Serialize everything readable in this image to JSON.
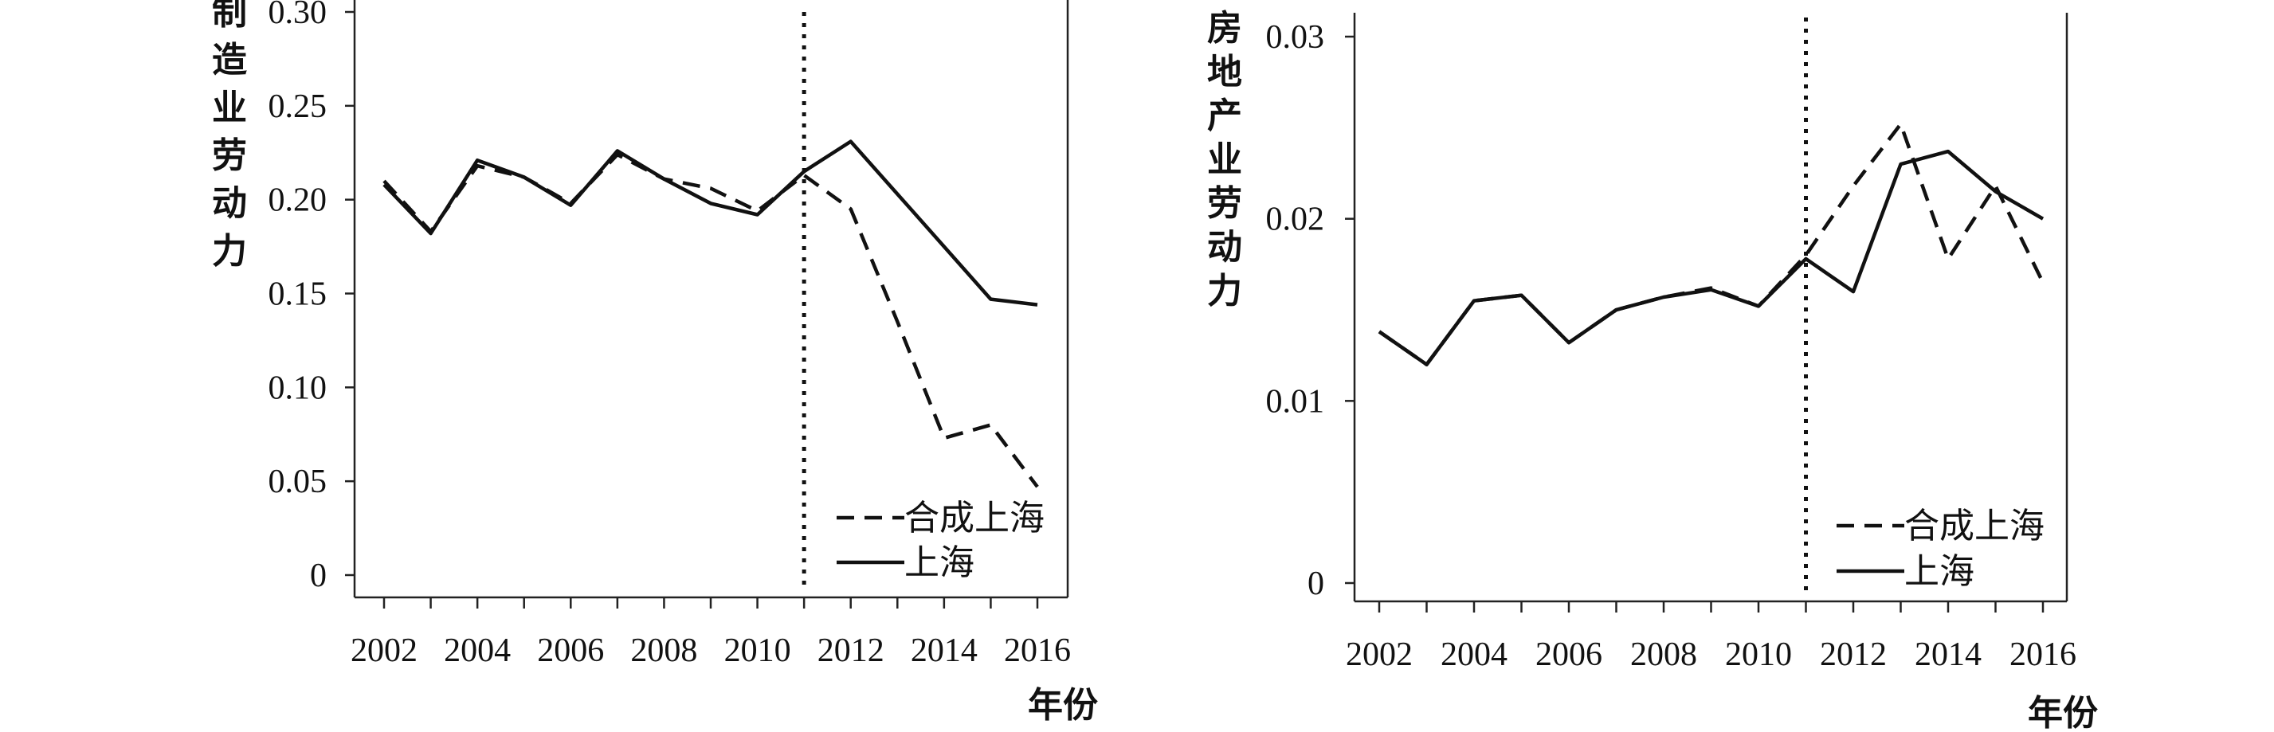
{
  "chart_data": [
    {
      "type": "line",
      "ylabel": "制造业劳动力",
      "xlabel": "年份",
      "x": [
        2002,
        2003,
        2004,
        2005,
        2006,
        2007,
        2008,
        2009,
        2010,
        2011,
        2012,
        2013,
        2014,
        2015,
        2016
      ],
      "xticks": [
        "2002",
        "2004",
        "2006",
        "2008",
        "2010",
        "2012",
        "2014",
        "2016"
      ],
      "yticks": [
        "0",
        "0.05",
        "0.10",
        "0.15",
        "0.20",
        "0.25",
        "0.30"
      ],
      "ylim": [
        0,
        0.3
      ],
      "intervention_year": 2011,
      "series": [
        {
          "name": "合成上海",
          "style": "dashed",
          "values": [
            0.21,
            0.183,
            0.218,
            0.212,
            0.198,
            0.224,
            0.211,
            0.206,
            0.194,
            0.213,
            0.195,
            0.135,
            0.073,
            0.08,
            0.047
          ]
        },
        {
          "name": "上海",
          "style": "solid",
          "values": [
            0.208,
            0.182,
            0.221,
            0.212,
            0.197,
            0.226,
            0.211,
            0.198,
            0.192,
            0.215,
            0.231,
            0.203,
            0.175,
            0.147,
            0.144
          ]
        }
      ],
      "legend": "bottom-right"
    },
    {
      "type": "line",
      "ylabel": "房地产业劳动力",
      "xlabel": "年份",
      "x": [
        2002,
        2003,
        2004,
        2005,
        2006,
        2007,
        2008,
        2009,
        2010,
        2011,
        2012,
        2013,
        2014,
        2015,
        2016
      ],
      "xticks": [
        "2002",
        "2004",
        "2006",
        "2008",
        "2010",
        "2012",
        "2014",
        "2016"
      ],
      "yticks": [
        "0",
        "0.01",
        "0.02",
        "0.03"
      ],
      "ylim": [
        0,
        0.03
      ],
      "intervention_year": 2011,
      "series": [
        {
          "name": "合成上海",
          "style": "dashed",
          "values": [
            0.0138,
            0.012,
            0.0155,
            0.0158,
            0.0132,
            0.015,
            0.0157,
            0.0162,
            0.0152,
            0.018,
            0.0218,
            0.0252,
            0.0178,
            0.0218,
            0.0165
          ]
        },
        {
          "name": "上海",
          "style": "solid",
          "values": [
            0.0138,
            0.012,
            0.0155,
            0.0158,
            0.0132,
            0.015,
            0.0157,
            0.0161,
            0.0152,
            0.0178,
            0.016,
            0.023,
            0.0237,
            0.0215,
            0.02
          ]
        }
      ],
      "legend": "bottom-right"
    }
  ]
}
